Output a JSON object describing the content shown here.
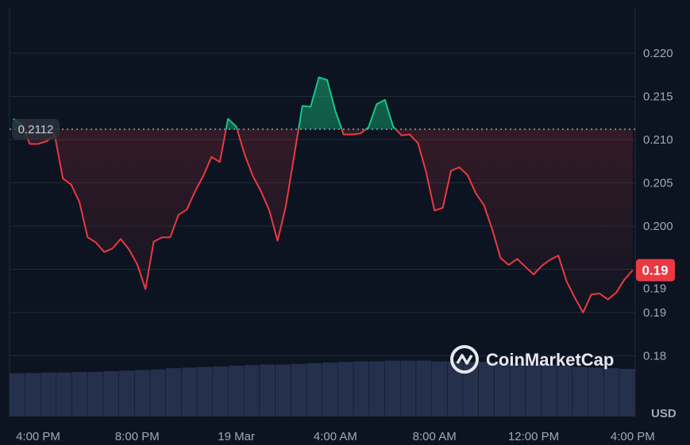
{
  "chart_data": {
    "type": "line",
    "title": "",
    "xlabel": "",
    "ylabel": "USD",
    "ylim": [
      0.1775,
      0.2245
    ],
    "grid": true,
    "y_ticks": [
      {
        "value": 0.22,
        "label": "0.220"
      },
      {
        "value": 0.215,
        "label": "0.215"
      },
      {
        "value": 0.21,
        "label": "0.210"
      },
      {
        "value": 0.205,
        "label": "0.205"
      },
      {
        "value": 0.2,
        "label": "0.200"
      },
      {
        "value": 0.195,
        "label": "0.19"
      },
      {
        "value": 0.19,
        "label": "0.19"
      },
      {
        "value": 0.185,
        "label": "0.18"
      }
    ],
    "x_ticks": [
      {
        "time": "18 Mar 16:00",
        "label": "4:00 PM"
      },
      {
        "time": "18 Mar 20:00",
        "label": "8:00 PM"
      },
      {
        "time": "19 Mar 00:00",
        "label": "19 Mar"
      },
      {
        "time": "19 Mar 04:00",
        "label": "4:00 AM"
      },
      {
        "time": "19 Mar 08:00",
        "label": "8:00 AM"
      },
      {
        "time": "19 Mar 12:00",
        "label": "12:00 PM"
      },
      {
        "time": "19 Mar 16:00",
        "label": "4:00 PM"
      }
    ],
    "baseline": {
      "value": 0.2112,
      "label": "0.2112"
    },
    "current_price": {
      "value": 0.1949,
      "label": "0.19"
    },
    "colors": {
      "up": "#16c784",
      "down": "#ea3943",
      "background": "#0d1421",
      "grid": "#222a38",
      "volume": "#2e3a5c"
    },
    "series": [
      {
        "points": [
          [
            "18 Mar 15:00",
            0.2124
          ],
          [
            "18 Mar 15:20",
            0.2117
          ],
          [
            "18 Mar 15:40",
            0.2095
          ],
          [
            "18 Mar 16:00",
            0.2095
          ],
          [
            "18 Mar 16:20",
            0.2098
          ],
          [
            "18 Mar 16:40",
            0.2106
          ],
          [
            "18 Mar 17:00",
            0.2055
          ],
          [
            "18 Mar 17:20",
            0.2048
          ],
          [
            "18 Mar 17:40",
            0.2028
          ],
          [
            "18 Mar 18:00",
            0.1987
          ],
          [
            "18 Mar 18:20",
            0.1981
          ],
          [
            "18 Mar 18:40",
            0.197
          ],
          [
            "18 Mar 19:00",
            0.1974
          ],
          [
            "18 Mar 19:20",
            0.1985
          ],
          [
            "18 Mar 19:40",
            0.1973
          ],
          [
            "18 Mar 20:00",
            0.1956
          ],
          [
            "18 Mar 20:20",
            0.1927
          ],
          [
            "18 Mar 20:40",
            0.1982
          ],
          [
            "18 Mar 21:00",
            0.1987
          ],
          [
            "18 Mar 21:20",
            0.1987
          ],
          [
            "18 Mar 21:40",
            0.2013
          ],
          [
            "18 Mar 22:00",
            0.2019
          ],
          [
            "18 Mar 22:20",
            0.204
          ],
          [
            "18 Mar 22:40",
            0.2058
          ],
          [
            "18 Mar 23:00",
            0.208
          ],
          [
            "18 Mar 23:20",
            0.2074
          ],
          [
            "18 Mar 23:40",
            0.2124
          ],
          [
            "19 Mar 00:00",
            0.2115
          ],
          [
            "19 Mar 00:20",
            0.2083
          ],
          [
            "19 Mar 00:40",
            0.2058
          ],
          [
            "19 Mar 01:00",
            0.204
          ],
          [
            "19 Mar 01:20",
            0.2018
          ],
          [
            "19 Mar 01:40",
            0.1983
          ],
          [
            "19 Mar 02:00",
            0.2023
          ],
          [
            "19 Mar 02:20",
            0.2081
          ],
          [
            "19 Mar 02:40",
            0.2139
          ],
          [
            "19 Mar 03:00",
            0.2138
          ],
          [
            "19 Mar 03:20",
            0.2172
          ],
          [
            "19 Mar 03:40",
            0.2169
          ],
          [
            "19 Mar 04:00",
            0.2133
          ],
          [
            "19 Mar 04:20",
            0.2106
          ],
          [
            "19 Mar 04:40",
            0.2106
          ],
          [
            "19 Mar 05:00",
            0.2107
          ],
          [
            "19 Mar 05:20",
            0.2114
          ],
          [
            "19 Mar 05:40",
            0.2141
          ],
          [
            "19 Mar 06:00",
            0.2146
          ],
          [
            "19 Mar 06:20",
            0.2115
          ],
          [
            "19 Mar 06:40",
            0.2105
          ],
          [
            "19 Mar 07:00",
            0.2106
          ],
          [
            "19 Mar 07:20",
            0.2096
          ],
          [
            "19 Mar 07:40",
            0.2062
          ],
          [
            "19 Mar 08:00",
            0.2018
          ],
          [
            "19 Mar 08:20",
            0.2021
          ],
          [
            "19 Mar 08:40",
            0.2064
          ],
          [
            "19 Mar 09:00",
            0.2068
          ],
          [
            "19 Mar 09:20",
            0.2059
          ],
          [
            "19 Mar 09:40",
            0.2038
          ],
          [
            "19 Mar 10:00",
            0.2024
          ],
          [
            "19 Mar 10:20",
            0.1996
          ],
          [
            "19 Mar 10:40",
            0.1963
          ],
          [
            "19 Mar 11:00",
            0.1955
          ],
          [
            "19 Mar 11:20",
            0.1962
          ],
          [
            "19 Mar 11:40",
            0.1953
          ],
          [
            "19 Mar 12:00",
            0.1944
          ],
          [
            "19 Mar 12:20",
            0.1954
          ],
          [
            "19 Mar 12:40",
            0.1961
          ],
          [
            "19 Mar 13:00",
            0.1966
          ],
          [
            "19 Mar 13:20",
            0.1936
          ],
          [
            "19 Mar 13:40",
            0.1917
          ],
          [
            "19 Mar 14:00",
            0.19
          ],
          [
            "19 Mar 14:20",
            0.1921
          ],
          [
            "19 Mar 14:40",
            0.1922
          ],
          [
            "19 Mar 15:00",
            0.1915
          ],
          [
            "19 Mar 15:20",
            0.1923
          ],
          [
            "19 Mar 15:40",
            0.1938
          ],
          [
            "19 Mar 16:00",
            0.1949
          ]
        ]
      }
    ],
    "volume_relative": [
      0.7,
      0.7,
      0.71,
      0.71,
      0.72,
      0.72,
      0.73,
      0.74,
      0.75,
      0.76,
      0.78,
      0.79,
      0.8,
      0.81,
      0.82,
      0.83,
      0.84,
      0.84,
      0.85,
      0.86,
      0.87,
      0.88,
      0.89,
      0.89,
      0.9,
      0.9,
      0.9,
      0.89,
      0.89,
      0.88,
      0.88,
      0.87,
      0.86,
      0.85,
      0.84,
      0.82,
      0.8,
      0.79,
      0.78,
      0.77
    ]
  },
  "watermark": {
    "text": "CoinMarketCap"
  }
}
